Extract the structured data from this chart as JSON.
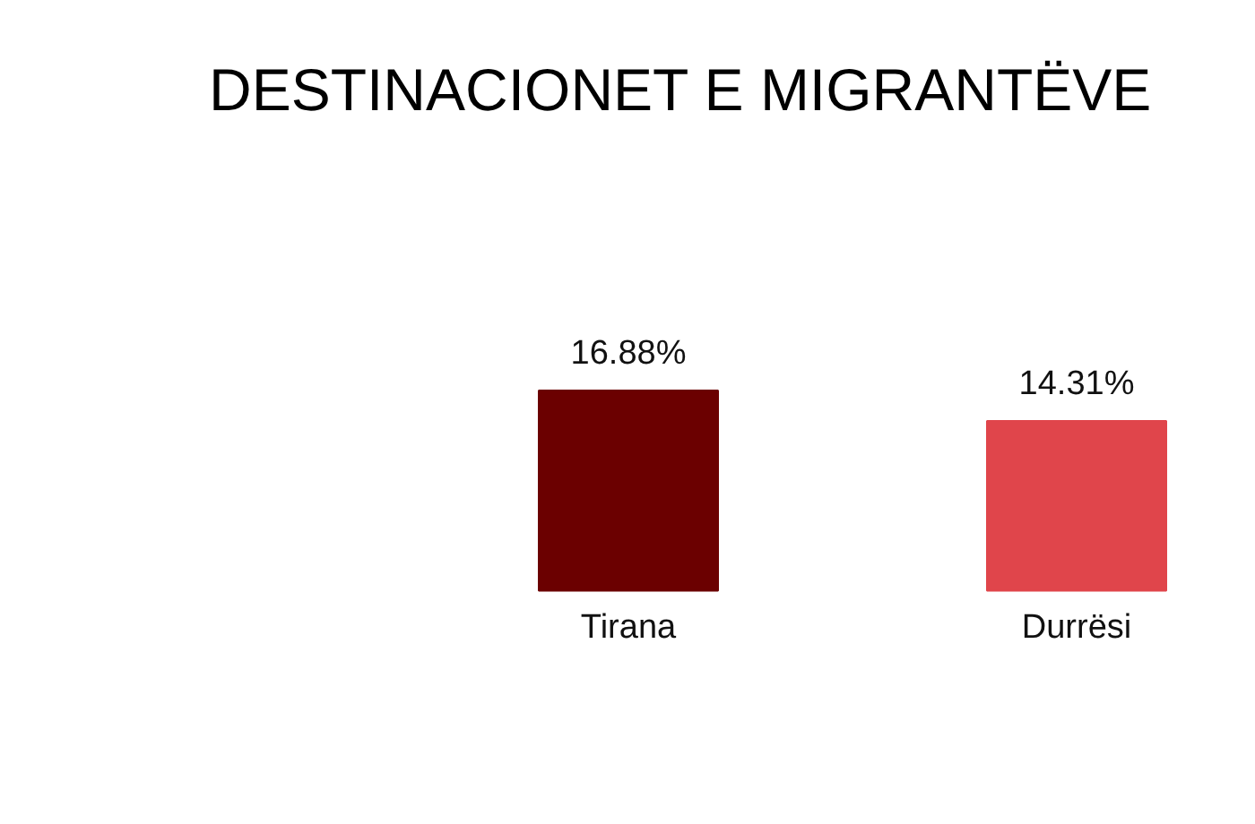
{
  "chart_data": {
    "type": "bar",
    "title": "DESTINACIONET E MIGRANTËVE",
    "categories": [
      "Tirana",
      "Durrësi"
    ],
    "values": [
      16.88,
      14.31
    ],
    "colors": [
      "#6b0000",
      "#e0454b"
    ],
    "value_labels": [
      "16.88%",
      "14.31%"
    ]
  }
}
